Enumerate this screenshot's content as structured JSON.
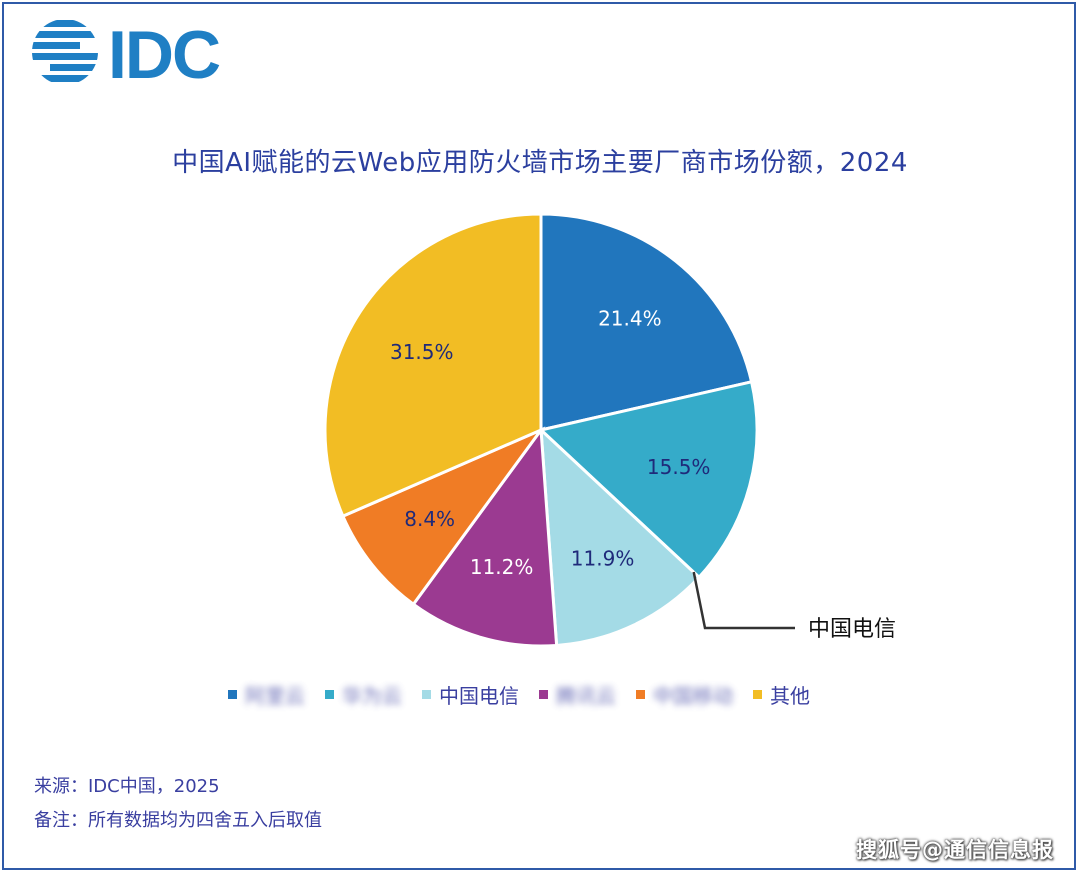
{
  "logo": {
    "text": "IDC",
    "color": "#1f7fc4"
  },
  "chart_data": {
    "type": "pie",
    "title": "中国AI赋能的云Web应用防火墙市场主要厂商市场份额，2024",
    "categories": [
      "阿里云",
      "华为云",
      "中国电信",
      "腾讯云",
      "中国移动",
      "其他"
    ],
    "values": [
      21.4,
      15.5,
      11.9,
      11.2,
      8.4,
      31.5
    ],
    "data_labels": [
      "21.4%",
      "15.5%",
      "11.9%",
      "11.2%",
      "8.4%",
      "31.5%"
    ],
    "colors": [
      "#2176bd",
      "#35abc9",
      "#a4dbe6",
      "#9b3a91",
      "#f07c25",
      "#f2bd24"
    ],
    "label_colors": [
      "#ffffff",
      "#1f2a7a",
      "#1f2a7a",
      "#ffffff",
      "#1f2a7a",
      "#1f2a7a"
    ],
    "legend_obscured": [
      true,
      true,
      false,
      true,
      true,
      false
    ],
    "start_angle_deg": 0,
    "direction": "clockwise",
    "callout": {
      "category_index": 2,
      "text": "中国电信"
    },
    "legend_placement": "bottom"
  },
  "footer": {
    "source": "来源：IDC中国，2025",
    "note": "备注：所有数据均为四舍五入后取值"
  },
  "watermark": "搜狐号@通信信息报"
}
